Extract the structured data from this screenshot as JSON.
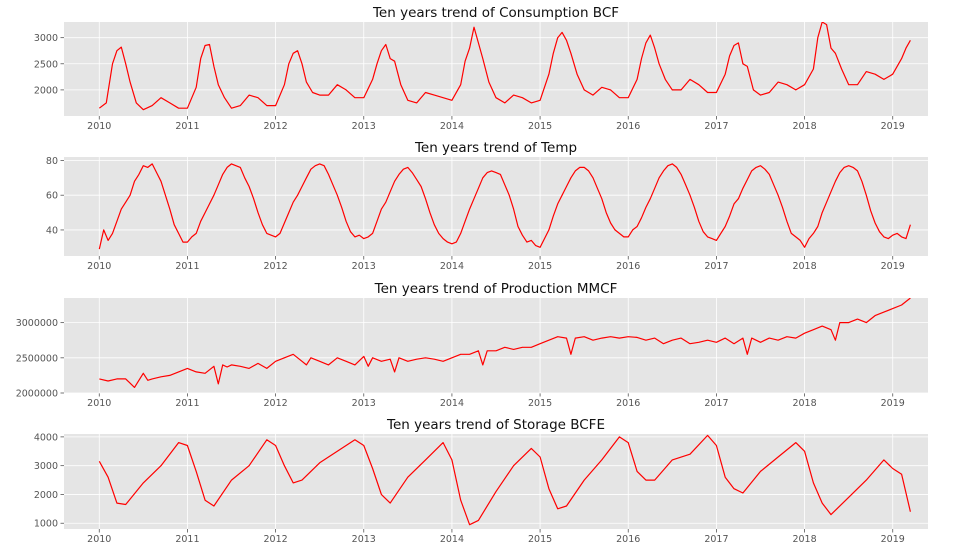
{
  "style": {
    "background": "#e5e5e5",
    "grid": "#ffffff",
    "line": "#ff0000"
  },
  "x_ticks": [
    "2010",
    "2011",
    "2012",
    "2013",
    "2014",
    "2015",
    "2016",
    "2017",
    "2018",
    "2019"
  ],
  "chart_data": [
    {
      "type": "line",
      "title": "Ten years trend of Consumption BCF",
      "xlim": [
        2009.6,
        2019.4
      ],
      "ylim": [
        1500,
        3300
      ],
      "yticks": [
        2000,
        2500,
        3000
      ],
      "grid": true,
      "series": [
        {
          "x": [
            2010.0,
            2010.08,
            2010.15,
            2010.2,
            2010.25,
            2010.3,
            2010.35,
            2010.42,
            2010.5,
            2010.6,
            2010.7,
            2010.8,
            2010.9,
            2011.0,
            2011.1,
            2011.15,
            2011.2,
            2011.25,
            2011.3,
            2011.35,
            2011.42,
            2011.5,
            2011.6,
            2011.7,
            2011.8,
            2011.9,
            2012.0,
            2012.1,
            2012.15,
            2012.2,
            2012.25,
            2012.3,
            2012.35,
            2012.42,
            2012.5,
            2012.6,
            2012.7,
            2012.8,
            2012.9,
            2013.0,
            2013.1,
            2013.15,
            2013.2,
            2013.25,
            2013.3,
            2013.35,
            2013.42,
            2013.5,
            2013.6,
            2013.7,
            2013.8,
            2013.9,
            2014.0,
            2014.1,
            2014.15,
            2014.2,
            2014.25,
            2014.3,
            2014.35,
            2014.42,
            2014.5,
            2014.6,
            2014.7,
            2014.8,
            2014.9,
            2015.0,
            2015.1,
            2015.15,
            2015.2,
            2015.25,
            2015.3,
            2015.35,
            2015.42,
            2015.5,
            2015.6,
            2015.7,
            2015.8,
            2015.9,
            2016.0,
            2016.1,
            2016.15,
            2016.2,
            2016.25,
            2016.3,
            2016.35,
            2016.42,
            2016.5,
            2016.6,
            2016.7,
            2016.8,
            2016.9,
            2017.0,
            2017.1,
            2017.15,
            2017.2,
            2017.25,
            2017.3,
            2017.35,
            2017.42,
            2017.5,
            2017.6,
            2017.7,
            2017.8,
            2017.9,
            2018.0,
            2018.1,
            2018.15,
            2018.2,
            2018.25,
            2018.3,
            2018.35,
            2018.42,
            2018.5,
            2018.6,
            2018.7,
            2018.8,
            2018.9,
            2019.0,
            2019.1,
            2019.15,
            2019.2
          ],
          "y": [
            1650,
            1750,
            2500,
            2750,
            2820,
            2500,
            2150,
            1750,
            1620,
            1700,
            1850,
            1750,
            1650,
            1650,
            2050,
            2600,
            2850,
            2870,
            2450,
            2100,
            1850,
            1650,
            1700,
            1900,
            1850,
            1700,
            1700,
            2100,
            2500,
            2700,
            2750,
            2500,
            2150,
            1950,
            1900,
            1900,
            2100,
            2000,
            1850,
            1850,
            2200,
            2500,
            2750,
            2870,
            2600,
            2550,
            2100,
            1800,
            1750,
            1950,
            1900,
            1850,
            1800,
            2100,
            2550,
            2800,
            3200,
            2900,
            2600,
            2150,
            1850,
            1750,
            1900,
            1850,
            1750,
            1800,
            2300,
            2700,
            3000,
            3100,
            2950,
            2700,
            2300,
            2000,
            1900,
            2050,
            2000,
            1850,
            1850,
            2200,
            2600,
            2900,
            3050,
            2800,
            2500,
            2200,
            2000,
            2000,
            2200,
            2100,
            1950,
            1950,
            2300,
            2650,
            2850,
            2900,
            2500,
            2450,
            2000,
            1900,
            1950,
            2150,
            2100,
            2000,
            2100,
            2400,
            3000,
            3300,
            3250,
            2800,
            2700,
            2400,
            2100,
            2100,
            2350,
            2300,
            2200,
            2300,
            2600,
            2800,
            2950
          ]
        }
      ]
    },
    {
      "type": "line",
      "title": "Ten years trend of Temp",
      "xlim": [
        2009.6,
        2019.4
      ],
      "ylim": [
        25,
        82
      ],
      "yticks": [
        40,
        60,
        80
      ],
      "grid": true,
      "series": [
        {
          "x": [
            2010.0,
            2010.05,
            2010.1,
            2010.15,
            2010.2,
            2010.25,
            2010.3,
            2010.35,
            2010.4,
            2010.45,
            2010.5,
            2010.55,
            2010.6,
            2010.65,
            2010.7,
            2010.75,
            2010.8,
            2010.85,
            2010.9,
            2010.95,
            2011.0,
            2011.05,
            2011.1,
            2011.15,
            2011.2,
            2011.25,
            2011.3,
            2011.35,
            2011.4,
            2011.45,
            2011.5,
            2011.55,
            2011.6,
            2011.65,
            2011.7,
            2011.75,
            2011.8,
            2011.85,
            2011.9,
            2011.95,
            2012.0,
            2012.05,
            2012.1,
            2012.15,
            2012.2,
            2012.25,
            2012.3,
            2012.35,
            2012.4,
            2012.45,
            2012.5,
            2012.55,
            2012.6,
            2012.65,
            2012.7,
            2012.75,
            2012.8,
            2012.85,
            2012.9,
            2012.95,
            2013.0,
            2013.05,
            2013.1,
            2013.15,
            2013.2,
            2013.25,
            2013.3,
            2013.35,
            2013.4,
            2013.45,
            2013.5,
            2013.55,
            2013.6,
            2013.65,
            2013.7,
            2013.75,
            2013.8,
            2013.85,
            2013.9,
            2013.95,
            2014.0,
            2014.05,
            2014.1,
            2014.15,
            2014.2,
            2014.25,
            2014.3,
            2014.35,
            2014.4,
            2014.45,
            2014.5,
            2014.55,
            2014.6,
            2014.65,
            2014.7,
            2014.75,
            2014.8,
            2014.85,
            2014.9,
            2014.95,
            2015.0,
            2015.05,
            2015.1,
            2015.15,
            2015.2,
            2015.25,
            2015.3,
            2015.35,
            2015.4,
            2015.45,
            2015.5,
            2015.55,
            2015.6,
            2015.65,
            2015.7,
            2015.75,
            2015.8,
            2015.85,
            2015.9,
            2015.95,
            2016.0,
            2016.05,
            2016.1,
            2016.15,
            2016.2,
            2016.25,
            2016.3,
            2016.35,
            2016.4,
            2016.45,
            2016.5,
            2016.55,
            2016.6,
            2016.65,
            2016.7,
            2016.75,
            2016.8,
            2016.85,
            2016.9,
            2016.95,
            2017.0,
            2017.05,
            2017.1,
            2017.15,
            2017.2,
            2017.25,
            2017.3,
            2017.35,
            2017.4,
            2017.45,
            2017.5,
            2017.55,
            2017.6,
            2017.65,
            2017.7,
            2017.75,
            2017.8,
            2017.85,
            2017.9,
            2017.95,
            2018.0,
            2018.05,
            2018.1,
            2018.15,
            2018.2,
            2018.25,
            2018.3,
            2018.35,
            2018.4,
            2018.45,
            2018.5,
            2018.55,
            2018.6,
            2018.65,
            2018.7,
            2018.75,
            2018.8,
            2018.85,
            2018.9,
            2018.95,
            2019.0,
            2019.05,
            2019.1,
            2019.15,
            2019.2
          ],
          "y": [
            29,
            40,
            34,
            38,
            45,
            52,
            56,
            60,
            68,
            72,
            77,
            76,
            78,
            73,
            68,
            60,
            52,
            43,
            38,
            33,
            33,
            36,
            38,
            45,
            50,
            55,
            60,
            66,
            72,
            76,
            78,
            77,
            76,
            70,
            65,
            58,
            50,
            43,
            38,
            37,
            36,
            38,
            44,
            50,
            56,
            60,
            65,
            70,
            75,
            77,
            78,
            77,
            72,
            66,
            60,
            53,
            45,
            39,
            36,
            37,
            35,
            36,
            38,
            45,
            52,
            56,
            62,
            68,
            72,
            75,
            76,
            73,
            69,
            65,
            58,
            50,
            43,
            38,
            35,
            33,
            32,
            33,
            38,
            45,
            52,
            58,
            64,
            70,
            73,
            74,
            73,
            72,
            66,
            60,
            52,
            42,
            37,
            33,
            34,
            31,
            30,
            35,
            40,
            48,
            55,
            60,
            65,
            70,
            74,
            76,
            76,
            74,
            70,
            64,
            58,
            50,
            44,
            40,
            38,
            36,
            36,
            40,
            42,
            47,
            53,
            58,
            64,
            70,
            74,
            77,
            78,
            76,
            72,
            66,
            60,
            53,
            45,
            39,
            36,
            35,
            34,
            38,
            42,
            48,
            55,
            58,
            64,
            69,
            74,
            76,
            77,
            75,
            72,
            66,
            60,
            53,
            45,
            38,
            36,
            34,
            30,
            35,
            38,
            42,
            50,
            56,
            62,
            68,
            73,
            76,
            77,
            76,
            74,
            68,
            60,
            51,
            44,
            39,
            36,
            35,
            37,
            38,
            36,
            35,
            43
          ]
        }
      ]
    },
    {
      "type": "line",
      "title": "Ten years trend of Production MMCF",
      "xlim": [
        2009.6,
        2019.4
      ],
      "ylim": [
        2000000,
        3350000
      ],
      "yticks": [
        2000000,
        2500000,
        3000000
      ],
      "grid": true,
      "series": [
        {
          "x": [
            2010.0,
            2010.1,
            2010.2,
            2010.3,
            2010.4,
            2010.5,
            2010.55,
            2010.6,
            2010.7,
            2010.8,
            2010.9,
            2011.0,
            2011.1,
            2011.2,
            2011.3,
            2011.35,
            2011.4,
            2011.45,
            2011.5,
            2011.6,
            2011.7,
            2011.8,
            2011.9,
            2012.0,
            2012.1,
            2012.2,
            2012.3,
            2012.35,
            2012.4,
            2012.5,
            2012.6,
            2012.7,
            2012.8,
            2012.9,
            2013.0,
            2013.05,
            2013.1,
            2013.2,
            2013.3,
            2013.35,
            2013.4,
            2013.5,
            2013.6,
            2013.7,
            2013.8,
            2013.9,
            2014.0,
            2014.1,
            2014.2,
            2014.3,
            2014.35,
            2014.4,
            2014.5,
            2014.6,
            2014.7,
            2014.8,
            2014.9,
            2015.0,
            2015.1,
            2015.2,
            2015.3,
            2015.35,
            2015.4,
            2015.5,
            2015.6,
            2015.7,
            2015.8,
            2015.9,
            2016.0,
            2016.1,
            2016.2,
            2016.3,
            2016.4,
            2016.5,
            2016.6,
            2016.7,
            2016.8,
            2016.9,
            2017.0,
            2017.1,
            2017.2,
            2017.3,
            2017.35,
            2017.4,
            2017.5,
            2017.6,
            2017.7,
            2017.8,
            2017.9,
            2018.0,
            2018.1,
            2018.2,
            2018.3,
            2018.35,
            2018.4,
            2018.5,
            2018.6,
            2018.7,
            2018.8,
            2018.9,
            2019.0,
            2019.1,
            2019.15,
            2019.2
          ],
          "y": [
            2200000,
            2170000,
            2200000,
            2200000,
            2080000,
            2280000,
            2180000,
            2200000,
            2230000,
            2250000,
            2300000,
            2350000,
            2300000,
            2280000,
            2380000,
            2130000,
            2400000,
            2370000,
            2400000,
            2380000,
            2350000,
            2420000,
            2350000,
            2450000,
            2500000,
            2550000,
            2450000,
            2400000,
            2500000,
            2450000,
            2400000,
            2500000,
            2450000,
            2400000,
            2520000,
            2380000,
            2500000,
            2450000,
            2480000,
            2300000,
            2500000,
            2450000,
            2480000,
            2500000,
            2480000,
            2450000,
            2500000,
            2550000,
            2550000,
            2600000,
            2400000,
            2600000,
            2600000,
            2650000,
            2620000,
            2650000,
            2650000,
            2700000,
            2750000,
            2800000,
            2780000,
            2550000,
            2780000,
            2800000,
            2750000,
            2780000,
            2800000,
            2780000,
            2800000,
            2790000,
            2750000,
            2780000,
            2700000,
            2750000,
            2780000,
            2700000,
            2720000,
            2750000,
            2720000,
            2780000,
            2700000,
            2780000,
            2550000,
            2780000,
            2720000,
            2780000,
            2750000,
            2800000,
            2780000,
            2850000,
            2900000,
            2950000,
            2900000,
            2750000,
            3000000,
            3000000,
            3050000,
            3000000,
            3100000,
            3150000,
            3200000,
            3250000,
            3300000,
            3350000
          ]
        }
      ]
    },
    {
      "type": "line",
      "title": "Ten years trend of Storage BCFE",
      "xlim": [
        2009.6,
        2019.4
      ],
      "ylim": [
        800,
        4100
      ],
      "yticks": [
        1000,
        2000,
        3000,
        4000
      ],
      "grid": true,
      "series": [
        {
          "x": [
            2010.0,
            2010.1,
            2010.2,
            2010.3,
            2010.5,
            2010.7,
            2010.9,
            2011.0,
            2011.1,
            2011.2,
            2011.3,
            2011.5,
            2011.7,
            2011.9,
            2012.0,
            2012.1,
            2012.2,
            2012.3,
            2012.5,
            2012.7,
            2012.9,
            2013.0,
            2013.1,
            2013.2,
            2013.3,
            2013.5,
            2013.7,
            2013.9,
            2014.0,
            2014.1,
            2014.2,
            2014.3,
            2014.5,
            2014.7,
            2014.9,
            2015.0,
            2015.1,
            2015.2,
            2015.3,
            2015.5,
            2015.7,
            2015.9,
            2016.0,
            2016.1,
            2016.2,
            2016.3,
            2016.5,
            2016.7,
            2016.9,
            2017.0,
            2017.1,
            2017.2,
            2017.3,
            2017.5,
            2017.7,
            2017.9,
            2018.0,
            2018.1,
            2018.2,
            2018.3,
            2018.5,
            2018.7,
            2018.9,
            2019.0,
            2019.1,
            2019.2
          ],
          "y": [
            3150,
            2600,
            1700,
            1650,
            2400,
            3000,
            3800,
            3700,
            2800,
            1800,
            1600,
            2500,
            3000,
            3900,
            3700,
            3000,
            2400,
            2500,
            3100,
            3500,
            3900,
            3700,
            2900,
            2000,
            1700,
            2600,
            3200,
            3800,
            3200,
            1800,
            950,
            1100,
            2100,
            3000,
            3600,
            3300,
            2200,
            1500,
            1600,
            2500,
            3200,
            4000,
            3800,
            2800,
            2500,
            2500,
            3200,
            3400,
            4050,
            3700,
            2600,
            2200,
            2050,
            2800,
            3300,
            3800,
            3500,
            2400,
            1700,
            1300,
            1900,
            2500,
            3200,
            2900,
            2700,
            1400
          ]
        }
      ]
    }
  ]
}
